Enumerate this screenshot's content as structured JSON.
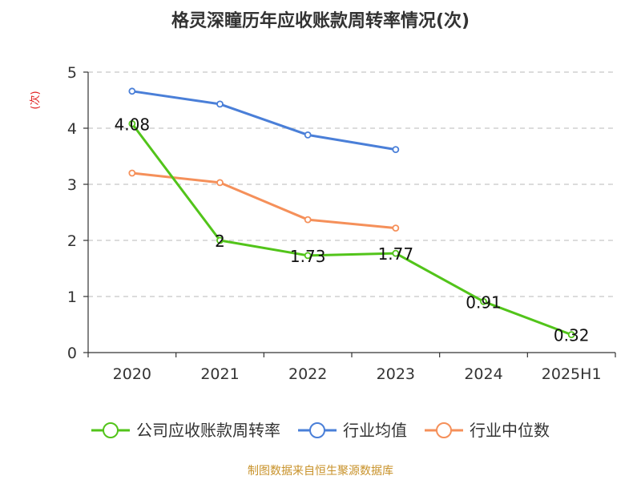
{
  "chart_data": {
    "type": "line",
    "title": "格灵深瞳历年应收账款周转率情况(次)",
    "ylabel": "(次)",
    "categories": [
      "2020",
      "2021",
      "2022",
      "2023",
      "2024",
      "2025H1"
    ],
    "ylim": [
      0,
      5
    ],
    "yticks": [
      "0",
      "1",
      "2",
      "3",
      "4",
      "5"
    ],
    "grid": true,
    "legend_position": "bottom",
    "series": [
      {
        "name": "公司应收账款周转率",
        "color": "#52c41a",
        "values": [
          4.08,
          2,
          1.73,
          1.77,
          0.91,
          0.32
        ],
        "labels": [
          "4.08",
          "2",
          "1.73",
          "1.77",
          "0.91",
          "0.32"
        ]
      },
      {
        "name": "行业均值",
        "color": "#4a7fd8",
        "values": [
          4.66,
          4.43,
          3.88,
          3.62,
          null,
          null
        ],
        "labels": []
      },
      {
        "name": "行业中位数",
        "color": "#f5905a",
        "values": [
          3.2,
          3.03,
          2.37,
          2.22,
          null,
          null
        ],
        "labels": []
      }
    ]
  },
  "source": "制图数据来自恒生聚源数据库"
}
